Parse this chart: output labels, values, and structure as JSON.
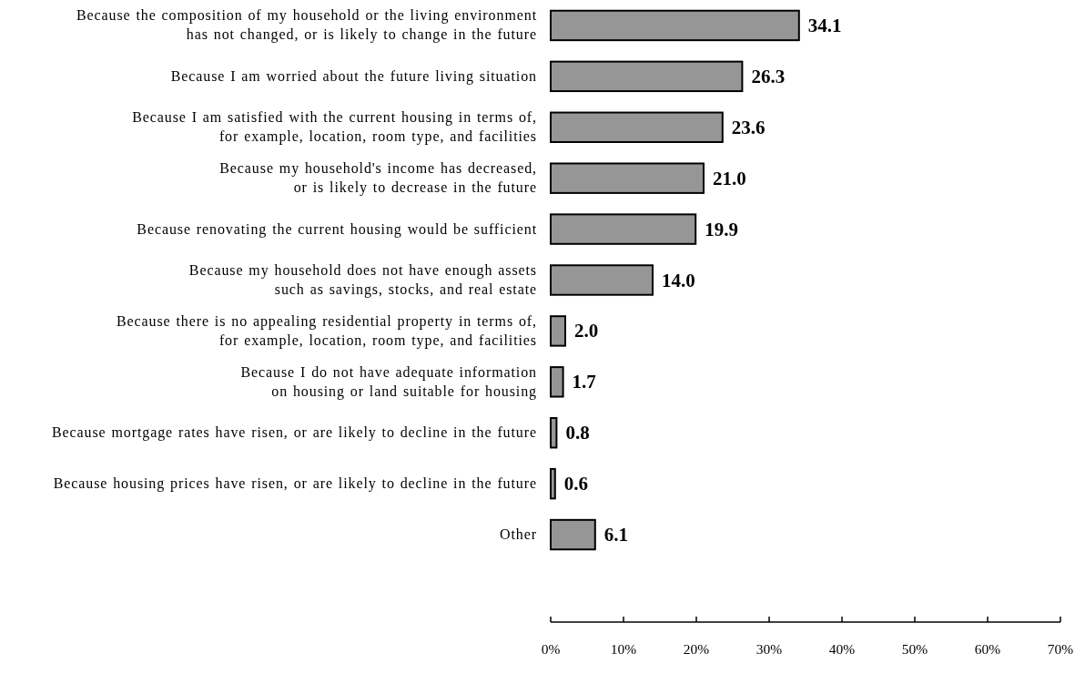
{
  "chart_data": {
    "type": "bar",
    "orientation": "horizontal",
    "categories": [
      "Because the composition of my household or the living environment\nhas not changed, or is likely to change in the future",
      "Because I am worried about the future living situation",
      "Because I am satisfied with the current housing in terms of,\nfor example, location, room type, and facilities",
      "Because my household's income has decreased,\nor is likely to decrease in the future",
      "Because renovating the current housing would be sufficient",
      "Because my household does not have enough assets\nsuch as savings, stocks, and real estate",
      "Because there is no appealing residential property in terms of,\nfor example, location, room type, and facilities",
      "Because I do not have adequate information\non housing or land suitable for housing",
      "Because mortgage rates have risen, or are likely to decline in the future",
      "Because housing prices have risen, or are likely to decline in the future",
      "Other"
    ],
    "values": [
      34.1,
      26.3,
      23.6,
      21.0,
      19.9,
      14.0,
      2.0,
      1.7,
      0.8,
      0.6,
      6.1
    ],
    "value_labels": [
      "34.1",
      "26.3",
      "23.6",
      "21.0",
      "19.9",
      "14.0",
      "2.0",
      "1.7",
      "0.8",
      "0.6",
      "6.1"
    ],
    "color": "#969696",
    "xlim": [
      0,
      70
    ],
    "xticks": [
      {
        "value": 0,
        "label": "0%"
      },
      {
        "value": 10,
        "label": "10%"
      },
      {
        "value": 20,
        "label": "20%"
      },
      {
        "value": 30,
        "label": "30%"
      },
      {
        "value": 40,
        "label": "40%"
      },
      {
        "value": 50,
        "label": "50%"
      },
      {
        "value": 60,
        "label": "60%"
      },
      {
        "value": 70,
        "label": "70%"
      }
    ],
    "grid": false
  }
}
